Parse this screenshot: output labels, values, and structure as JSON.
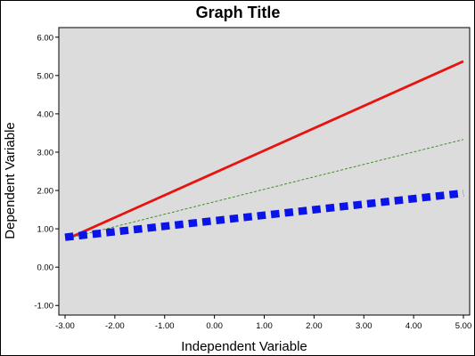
{
  "chart_data": {
    "type": "line",
    "title": "Graph Title",
    "xlabel": "Independent Variable",
    "ylabel": "Dependent Variable",
    "xlim": [
      -3.0,
      5.0
    ],
    "ylim": [
      -1.25,
      6.25
    ],
    "x_ticks": [
      -3.0,
      -2.0,
      -1.0,
      0.0,
      1.0,
      2.0,
      3.0,
      4.0,
      5.0
    ],
    "x_tick_labels": [
      "-3.00",
      "-2.00",
      "-1.00",
      "0.00",
      "1.00",
      "2.00",
      "3.00",
      "4.00",
      "5.00"
    ],
    "y_ticks": [
      -1.0,
      0.0,
      1.0,
      2.0,
      3.0,
      4.0,
      5.0,
      6.0
    ],
    "y_tick_labels": [
      "-1.00",
      "0.00",
      "1.00",
      "2.00",
      "3.00",
      "4.00",
      "5.00",
      "6.00"
    ],
    "grid": false,
    "background_color": "#dcdcdc",
    "series": [
      {
        "x": [
          -2.85,
          5.0
        ],
        "values": [
          0.8,
          5.37
        ],
        "color": "#e8120f",
        "style": "solid"
      },
      {
        "x": [
          -2.85,
          5.0
        ],
        "values": [
          0.78,
          3.33
        ],
        "color": "#2f8a18",
        "style": "dashed-thin"
      },
      {
        "x": [
          -3.0,
          5.0
        ],
        "values": [
          0.78,
          1.93
        ],
        "color": "#0a14e8",
        "style": "dashed-thick"
      }
    ]
  }
}
